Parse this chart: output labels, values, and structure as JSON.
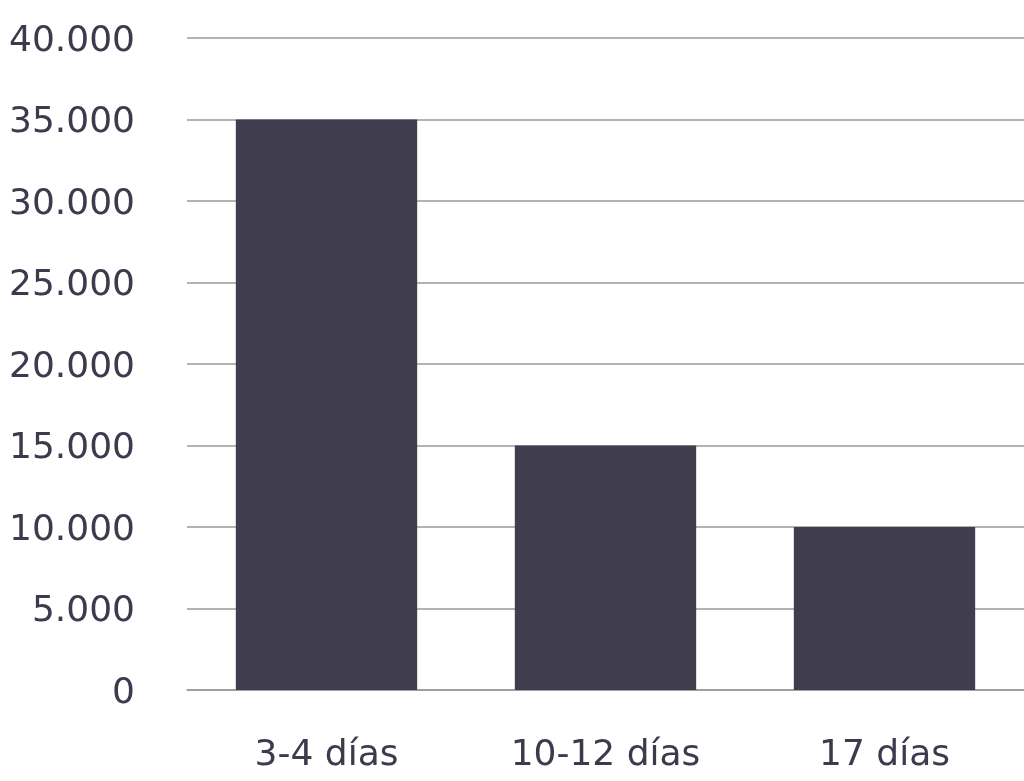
{
  "chart_data": {
    "type": "bar",
    "categories": [
      "3-4 días",
      "10-12 días",
      "17 días"
    ],
    "values": [
      35000,
      15000,
      10000
    ],
    "color": "#403d4f",
    "ylim": [
      0,
      40000
    ],
    "yticks": [
      {
        "value": 0,
        "label": "0"
      },
      {
        "value": 5000,
        "label": "5.000"
      },
      {
        "value": 10000,
        "label": "10.000"
      },
      {
        "value": 15000,
        "label": "15.000"
      },
      {
        "value": 20000,
        "label": "20.000"
      },
      {
        "value": 25000,
        "label": "25.000"
      },
      {
        "value": 30000,
        "label": "30.000"
      },
      {
        "value": 35000,
        "label": "35.000"
      },
      {
        "value": 40000,
        "label": "40.000"
      }
    ],
    "grid": "y"
  }
}
